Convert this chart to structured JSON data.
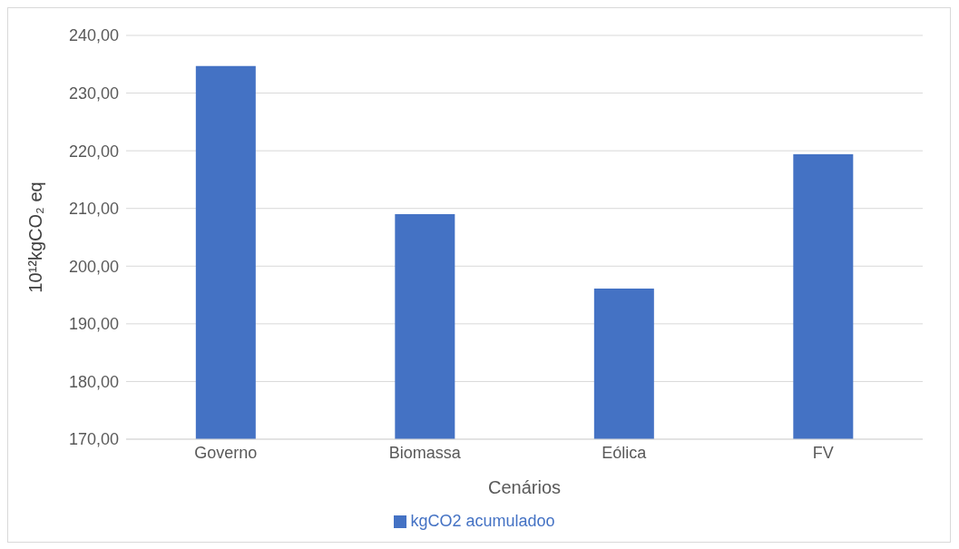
{
  "chart_data": {
    "type": "bar",
    "xlabel": "Cenários",
    "ylabel": "10¹²kgCO₂ eq",
    "categories": [
      "Governo",
      "Biomassa",
      "Eólica",
      "FV"
    ],
    "series": [
      {
        "name": "kgCO2 acumuladoo",
        "color": "#4472c4",
        "values": [
          234.7,
          209.0,
          196.1,
          219.4
        ]
      }
    ],
    "ylim": [
      170,
      240
    ],
    "yticks": [
      {
        "value": 170,
        "label": "170,00"
      },
      {
        "value": 180,
        "label": "180,00"
      },
      {
        "value": 190,
        "label": "190,00"
      },
      {
        "value": 200,
        "label": "200,00"
      },
      {
        "value": 210,
        "label": "210,00"
      },
      {
        "value": 220,
        "label": "220,00"
      },
      {
        "value": 230,
        "label": "230,00"
      },
      {
        "value": 240,
        "label": "240,00"
      }
    ],
    "grid": "y",
    "legend": "bottom"
  }
}
